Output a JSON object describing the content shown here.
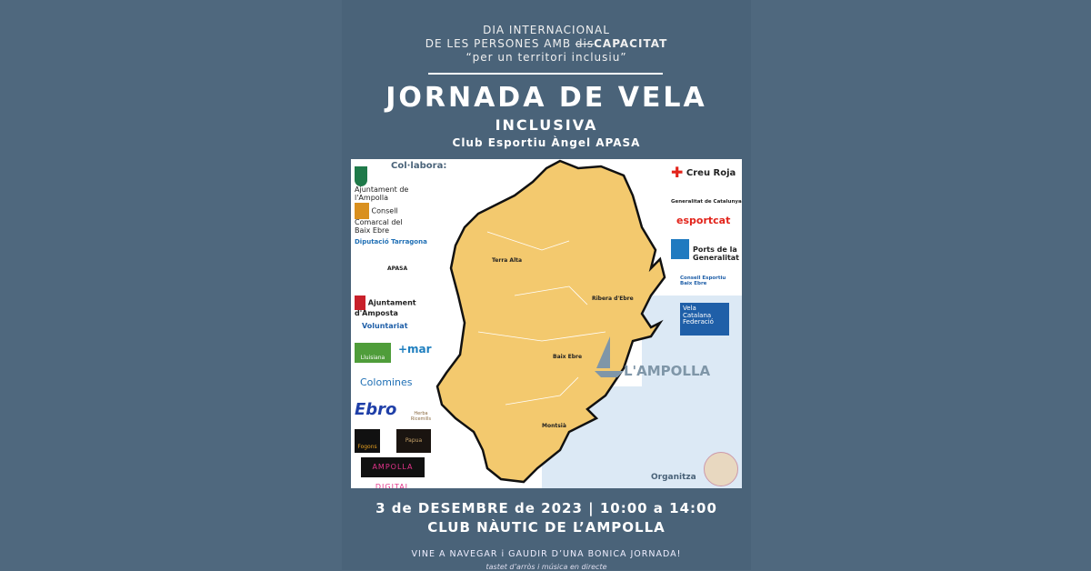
{
  "header": {
    "line1": "DIA INTERNACIONAL",
    "line2_prefix": "DE LES PERSONES AMB ",
    "line2_strike": "dis",
    "line2_bold": "CAPACITAT",
    "line3": "“per un territori inclusiu”"
  },
  "title": "JORNADA DE VELA",
  "subtitle": "INCLUSIVA",
  "club": "Club Esportiu Àngel APASA",
  "card": {
    "collabora": "Col·labora:",
    "organitza": "Organitza",
    "town_logo": "L'AMPOLLA",
    "regions": [
      "Terra Alta",
      "Ribera d'Ebre",
      "Baix Ebre",
      "Montsià"
    ],
    "left_logos": [
      "Ajuntament de l'Ampolla",
      "Consell Comarcal del Baix Ebre",
      "Diputació Tarragona",
      "APASA",
      "Ajuntament d'Amposta",
      "Voluntariat",
      "Lluisiana",
      "+mar",
      "Colomines",
      "Ebro",
      "Herba Ricemills",
      "Fogons",
      "Papua",
      "AMPOLLA DIGITAL"
    ],
    "right_logos": [
      "Creu Roja",
      "Generalitat de Catalunya",
      "esportcat",
      "Ports de la Generalitat",
      "Consell Esportiu Baix Ebre",
      "Vela Catalana Federació"
    ]
  },
  "date": "3 de DESEMBRE de 2023 | 10:00 a 14:00",
  "venue": "CLUB NÀUTIC DE L’AMPOLLA",
  "invite": "VINE A NAVEGAR i GAUDIR D’UNA BONICA JORNADA!",
  "extras": "tastet d’arròs i música en directe",
  "colors": {
    "background": "#4a6379",
    "map": "#f3c96e",
    "sea": "#dce9f5",
    "red": "#e2231a",
    "blue": "#1f5fa8"
  }
}
